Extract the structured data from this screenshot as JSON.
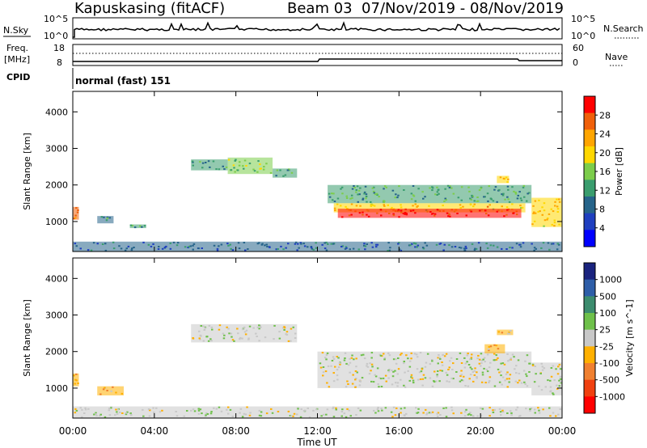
{
  "header": {
    "site": "Kapuskasing (fitACF)",
    "beam_dates": "Beam 03  07/Nov/2019 - 08/Nov/2019"
  },
  "strip": {
    "nsky_label": "N.Sky",
    "nsky_top": "10^5",
    "nsky_bottom": "10^0",
    "nsearch_label": "N.Search",
    "nsearch_top": "10^5",
    "nsearch_bottom": "10^0",
    "freq_label_1": "Freq.",
    "freq_label_2": "[MHz]",
    "freq_top": "18",
    "freq_bottom": "8",
    "nave_label": "Nave",
    "nave_top": "60",
    "nave_bottom": "0",
    "cpid_label": "CPID",
    "cpid_text": "normal (fast) 151"
  },
  "x_axis": {
    "label": "Time UT",
    "ticks": [
      "00:00",
      "04:00",
      "08:00",
      "12:00",
      "16:00",
      "20:00",
      "00:00"
    ]
  },
  "chart_data": [
    {
      "type": "heatmap",
      "title": "",
      "xlabel": "Time UT",
      "ylabel": "Slant Range [km]",
      "xlim_hours": [
        0,
        24
      ],
      "ylim_km": [
        180,
        4560
      ],
      "y_ticks": [
        1000,
        2000,
        3000,
        4000
      ],
      "colorbar_label": "Power [dB]",
      "colorbar_ticks": [
        "28",
        "24",
        "20",
        "16",
        "12",
        "8",
        "4"
      ],
      "colorbar_range": [
        0,
        30
      ],
      "colors": [
        "#ff0000",
        "#f0600a",
        "#ffa500",
        "#ffd700",
        "#7ccd4b",
        "#3a9d6e",
        "#26648a",
        "#1f3fbf",
        "#0000ff"
      ],
      "regions": [
        {
          "t": [
            0.0,
            0.3
          ],
          "r": [
            1050,
            1400
          ],
          "v": 24
        },
        {
          "t": [
            1.2,
            2.0
          ],
          "r": [
            950,
            1150
          ],
          "v": 10
        },
        {
          "t": [
            2.8,
            3.6
          ],
          "r": [
            820,
            920
          ],
          "v": 12
        },
        {
          "t": [
            5.8,
            7.6
          ],
          "r": [
            2400,
            2700
          ],
          "v": 11
        },
        {
          "t": [
            7.6,
            9.8
          ],
          "r": [
            2300,
            2750
          ],
          "v": 15
        },
        {
          "t": [
            9.8,
            11.0
          ],
          "r": [
            2200,
            2450
          ],
          "v": 12
        },
        {
          "t": [
            12.5,
            22.5
          ],
          "r": [
            1500,
            2000
          ],
          "v": 12
        },
        {
          "t": [
            12.8,
            22.2
          ],
          "r": [
            1250,
            1500
          ],
          "v": 20
        },
        {
          "t": [
            13.0,
            22.0
          ],
          "r": [
            1100,
            1350
          ],
          "v": 28
        },
        {
          "t": [
            20.8,
            21.4
          ],
          "r": [
            2050,
            2250
          ],
          "v": 20
        },
        {
          "t": [
            22.5,
            24.0
          ],
          "r": [
            850,
            1650
          ],
          "v": 20
        },
        {
          "t": [
            0.0,
            24.0
          ],
          "r": [
            180,
            450
          ],
          "v": 8
        }
      ]
    },
    {
      "type": "heatmap",
      "title": "",
      "xlabel": "Time UT",
      "ylabel": "Slant Range [km]",
      "xlim_hours": [
        0,
        24
      ],
      "ylim_km": [
        180,
        4560
      ],
      "y_ticks": [
        1000,
        2000,
        3000,
        4000
      ],
      "colorbar_label": "Velocity [m s^-1]",
      "colorbar_ticks": [
        "1000",
        "500",
        "100",
        "25",
        "-25",
        "-100",
        "-500",
        "-1000"
      ],
      "colorbar_range": [
        -1000,
        1000
      ],
      "colors": [
        "#1a237e",
        "#2e5ea8",
        "#3c8c6e",
        "#6ec04a",
        "#c8c8c8",
        "#ffb000",
        "#f08030",
        "#f04010",
        "#ff0000"
      ],
      "regions": [
        {
          "t": [
            0.0,
            0.3
          ],
          "r": [
            1050,
            1400
          ],
          "v": -300
        },
        {
          "t": [
            1.2,
            2.5
          ],
          "r": [
            800,
            1050
          ],
          "v": -300
        },
        {
          "t": [
            5.8,
            11.0
          ],
          "r": [
            2250,
            2750
          ],
          "v": 0
        },
        {
          "t": [
            12.0,
            22.5
          ],
          "r": [
            1000,
            2000
          ],
          "v": 0
        },
        {
          "t": [
            20.2,
            21.2
          ],
          "r": [
            1950,
            2200
          ],
          "v": -300
        },
        {
          "t": [
            20.8,
            21.6
          ],
          "r": [
            2450,
            2600
          ],
          "v": -150
        },
        {
          "t": [
            22.5,
            24.0
          ],
          "r": [
            800,
            1700
          ],
          "v": 60
        },
        {
          "t": [
            0.0,
            24.0
          ],
          "r": [
            180,
            500
          ],
          "v": 50
        }
      ]
    }
  ]
}
